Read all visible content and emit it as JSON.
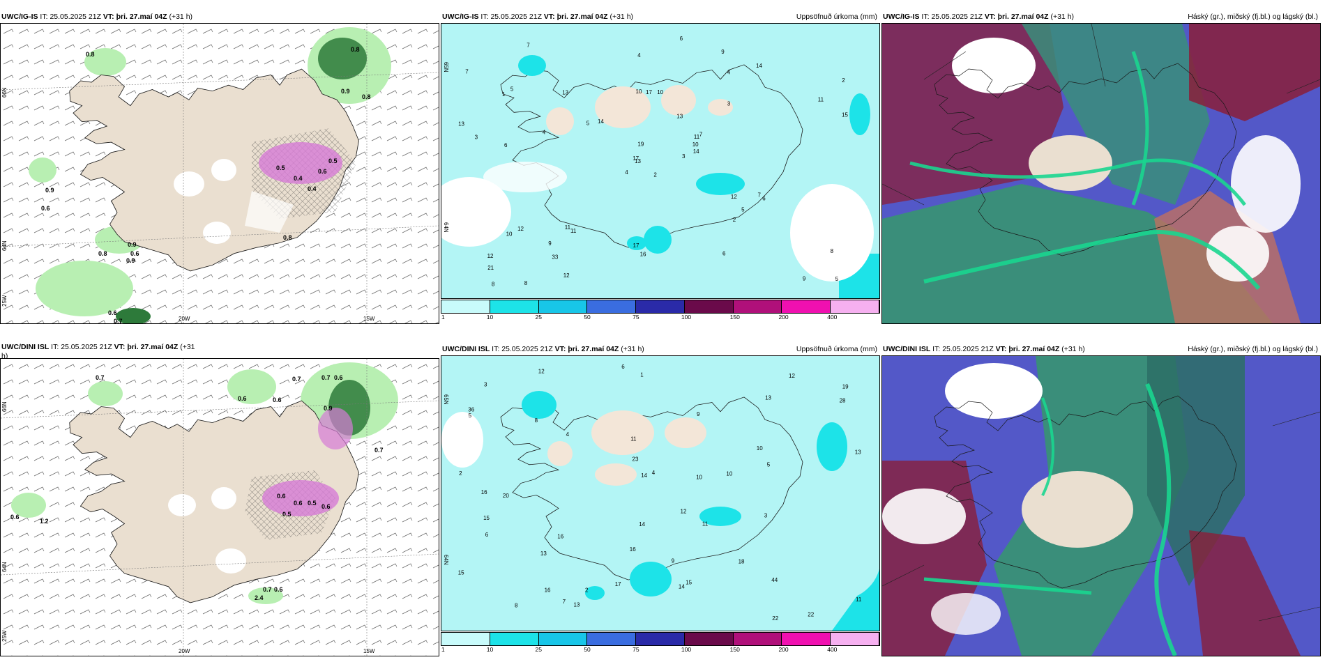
{
  "colors": {
    "land": "#eadfd0",
    "coast": "#1a1a1a",
    "cyan_light": "#b3f5f5",
    "cyan_mid": "#1de3e8",
    "green_light": "#b8efb2",
    "green_dark": "#2d7a3a",
    "magenta": "#d67ad6",
    "cloud_high": "#8a1f3a",
    "cloud_mid": "#3a8e7a",
    "cloud_low": "#5358c8"
  },
  "rows": [
    {
      "model": "UWC/IG-IS",
      "p1": {
        "header_model": "UWC/IG-IS",
        "header_it_label": "IT:",
        "header_it": "25.05.2025 21Z",
        "header_vt_label": "VT:",
        "header_vt": "þri. 27.maí 04Z",
        "header_lead": "(+31 h)",
        "lat_labels": [
          "66N",
          "64N",
          "25W"
        ],
        "lon_labels": [
          "20W",
          "15W"
        ],
        "values": [
          "0.8",
          "0.8",
          "0.9",
          "0.6",
          "0.9",
          "0.8",
          "0.6",
          "0.9",
          "0.6",
          "0.7",
          "0.8",
          "0.9",
          "0.8",
          "0.5",
          "0.4",
          "0.6",
          "0.5",
          "0.4"
        ]
      },
      "p2": {
        "header_model": "UWC/IG-IS",
        "header_it_label": "IT:",
        "header_it": "25.05.2025 21Z",
        "header_vt_label": "VT:",
        "header_vt": "þri. 27.maí 04Z",
        "header_lead": "(+31 h)",
        "right_title": "Uppsöfnuð úrkoma (mm)",
        "lat_labels": [
          "65N",
          "64N"
        ],
        "numbers": [
          "2",
          "1",
          "13",
          "12",
          "11",
          "11",
          "9",
          "10",
          "4",
          "3",
          "7",
          "5",
          "6",
          "2",
          "4",
          "3",
          "8",
          "10",
          "13",
          "12",
          "14",
          "21",
          "33",
          "17",
          "7",
          "6",
          "5",
          "4",
          "3",
          "12",
          "15",
          "17",
          "17",
          "19",
          "13",
          "14",
          "11",
          "9",
          "8",
          "7",
          "6",
          "5",
          "4",
          "2",
          "12",
          "13",
          "10",
          "8",
          "16",
          "14",
          "10",
          "11",
          "7",
          "5",
          "6",
          "9"
        ]
      },
      "p3": {
        "header_model": "UWC/IG-IS",
        "header_it_label": "IT:",
        "header_it": "25.05.2025 21Z",
        "header_vt_label": "VT:",
        "header_vt": "þri. 27.maí 04Z",
        "header_lead": "(+31 h)",
        "right_title": "Háský (gr.), miðský (fj.bl.) og lágský (bl.)"
      }
    },
    {
      "model": "UWC/DINI ISL",
      "p1": {
        "header_model": "UWC/DINI ISL",
        "header_it_label": "IT:",
        "header_it": "25.05.2025 21Z",
        "header_vt_label": "VT:",
        "header_vt": "þri. 27.maí 04Z",
        "header_lead": "(+31",
        "header_wrap": "h)",
        "lat_labels": [
          "66N",
          "64N",
          "25W"
        ],
        "lon_labels": [
          "20W",
          "15W"
        ],
        "values": [
          "0.7",
          "0.6",
          "0.6",
          "0.7",
          "0.7",
          "0.6",
          "0.9",
          "0.6",
          "1.2",
          "0.7",
          "0.6",
          "2.4",
          "0.6",
          "0.5",
          "0.6",
          "0.6",
          "0.5",
          "0.7"
        ]
      },
      "p2": {
        "header_model": "UWC/DINI ISL",
        "header_it_label": "IT:",
        "header_it": "25.05.2025 21Z",
        "header_vt_label": "VT:",
        "header_vt": "þri. 27.maí 04Z",
        "header_lead": "(+31 h)",
        "right_title": "Uppsöfnuð úrkoma (mm)",
        "lat_labels": [
          "65N",
          "64N"
        ],
        "numbers": [
          "2",
          "1",
          "10",
          "19",
          "36",
          "22",
          "20",
          "9",
          "11",
          "12",
          "4",
          "3",
          "6",
          "5",
          "8",
          "13",
          "15",
          "16",
          "12",
          "16",
          "18",
          "44",
          "28",
          "23",
          "16",
          "14",
          "11",
          "12",
          "13",
          "14",
          "15",
          "22",
          "10",
          "8",
          "7",
          "6",
          "5",
          "3",
          "2",
          "4",
          "9",
          "10",
          "11",
          "13",
          "14",
          "16",
          "13",
          "15",
          "17"
        ]
      },
      "p3": {
        "header_model": "UWC/DINI ISL",
        "header_it_label": "IT:",
        "header_it": "25.05.2025 21Z",
        "header_vt_label": "VT:",
        "header_vt": "þri. 27.maí 04Z",
        "header_lead": "(+31 h)",
        "right_title": "Háský (gr.), miðský (fj.bl.) og lágský (bl.)"
      }
    }
  ],
  "precip_colorbar": {
    "labels": [
      "1",
      "10",
      "25",
      "50",
      "75",
      "100",
      "150",
      "200",
      "400"
    ],
    "colors": [
      "#c8fbfb",
      "#1de3e8",
      "#18c6e8",
      "#3a6de0",
      "#2a2aa8",
      "#6a0a4a",
      "#b0107a",
      "#f010b0",
      "#f6b0f0"
    ]
  }
}
